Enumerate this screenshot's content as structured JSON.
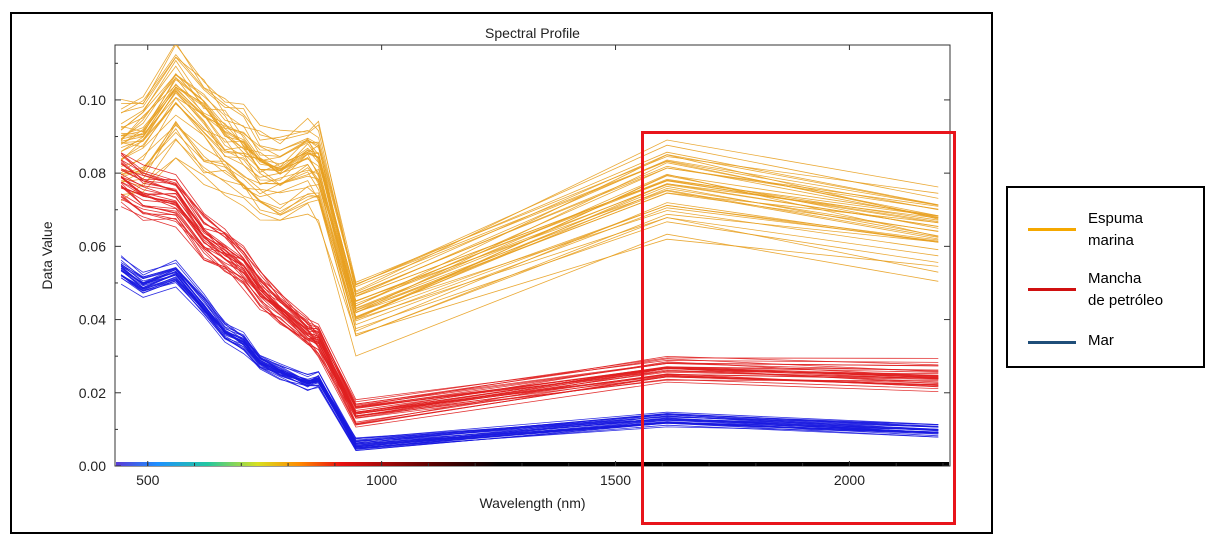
{
  "chart_data": {
    "type": "line",
    "title": "Spectral Profile",
    "xlabel": "Wavelength (nm)",
    "ylabel": "Data Value",
    "xlim": [
      430,
      2215
    ],
    "ylim": [
      0,
      0.115
    ],
    "x_ticks": [
      500,
      1000,
      1500,
      2000
    ],
    "x_tick_labels": [
      "500",
      "1000",
      "1500",
      "2000"
    ],
    "y_ticks": [
      0,
      0.02,
      0.04,
      0.06,
      0.08,
      0.1
    ],
    "y_tick_labels": [
      "0.00",
      "0.02",
      "0.04",
      "0.06",
      "0.08",
      "0.10"
    ],
    "grid": false,
    "legend_position": "outside-right",
    "wavelengths": [
      443,
      490,
      560,
      620,
      665,
      705,
      740,
      783,
      842,
      865,
      945,
      1610,
      2190
    ],
    "series": [
      {
        "name": "Espuma marina",
        "color": "#e8a020",
        "count": 40,
        "mean_profile": [
          0.085,
          0.087,
          0.099,
          0.091,
          0.086,
          0.083,
          0.078,
          0.077,
          0.081,
          0.079,
          0.041,
          0.075,
          0.063
        ],
        "spread": 0.011
      },
      {
        "name": "Mancha de petróleo",
        "color": "#e02020",
        "count": 35,
        "mean_profile": [
          0.078,
          0.074,
          0.072,
          0.062,
          0.058,
          0.054,
          0.048,
          0.043,
          0.036,
          0.034,
          0.014,
          0.026,
          0.024
        ],
        "spread": 0.006
      },
      {
        "name": "Mar",
        "color": "#1a1ae0",
        "count": 30,
        "mean_profile": [
          0.054,
          0.05,
          0.053,
          0.044,
          0.037,
          0.034,
          0.029,
          0.026,
          0.023,
          0.024,
          0.006,
          0.013,
          0.01
        ],
        "spread": 0.003
      }
    ]
  },
  "legend": {
    "items": [
      {
        "label": "Espuma\nmarina",
        "color": "#f5a800"
      },
      {
        "label": "Mancha\nde petróleo",
        "color": "#d01010"
      },
      {
        "label": "Mar",
        "color": "#1f4e79"
      }
    ]
  },
  "highlight": {
    "color": "#e8141b",
    "x_range": [
      1555,
      2215
    ]
  }
}
